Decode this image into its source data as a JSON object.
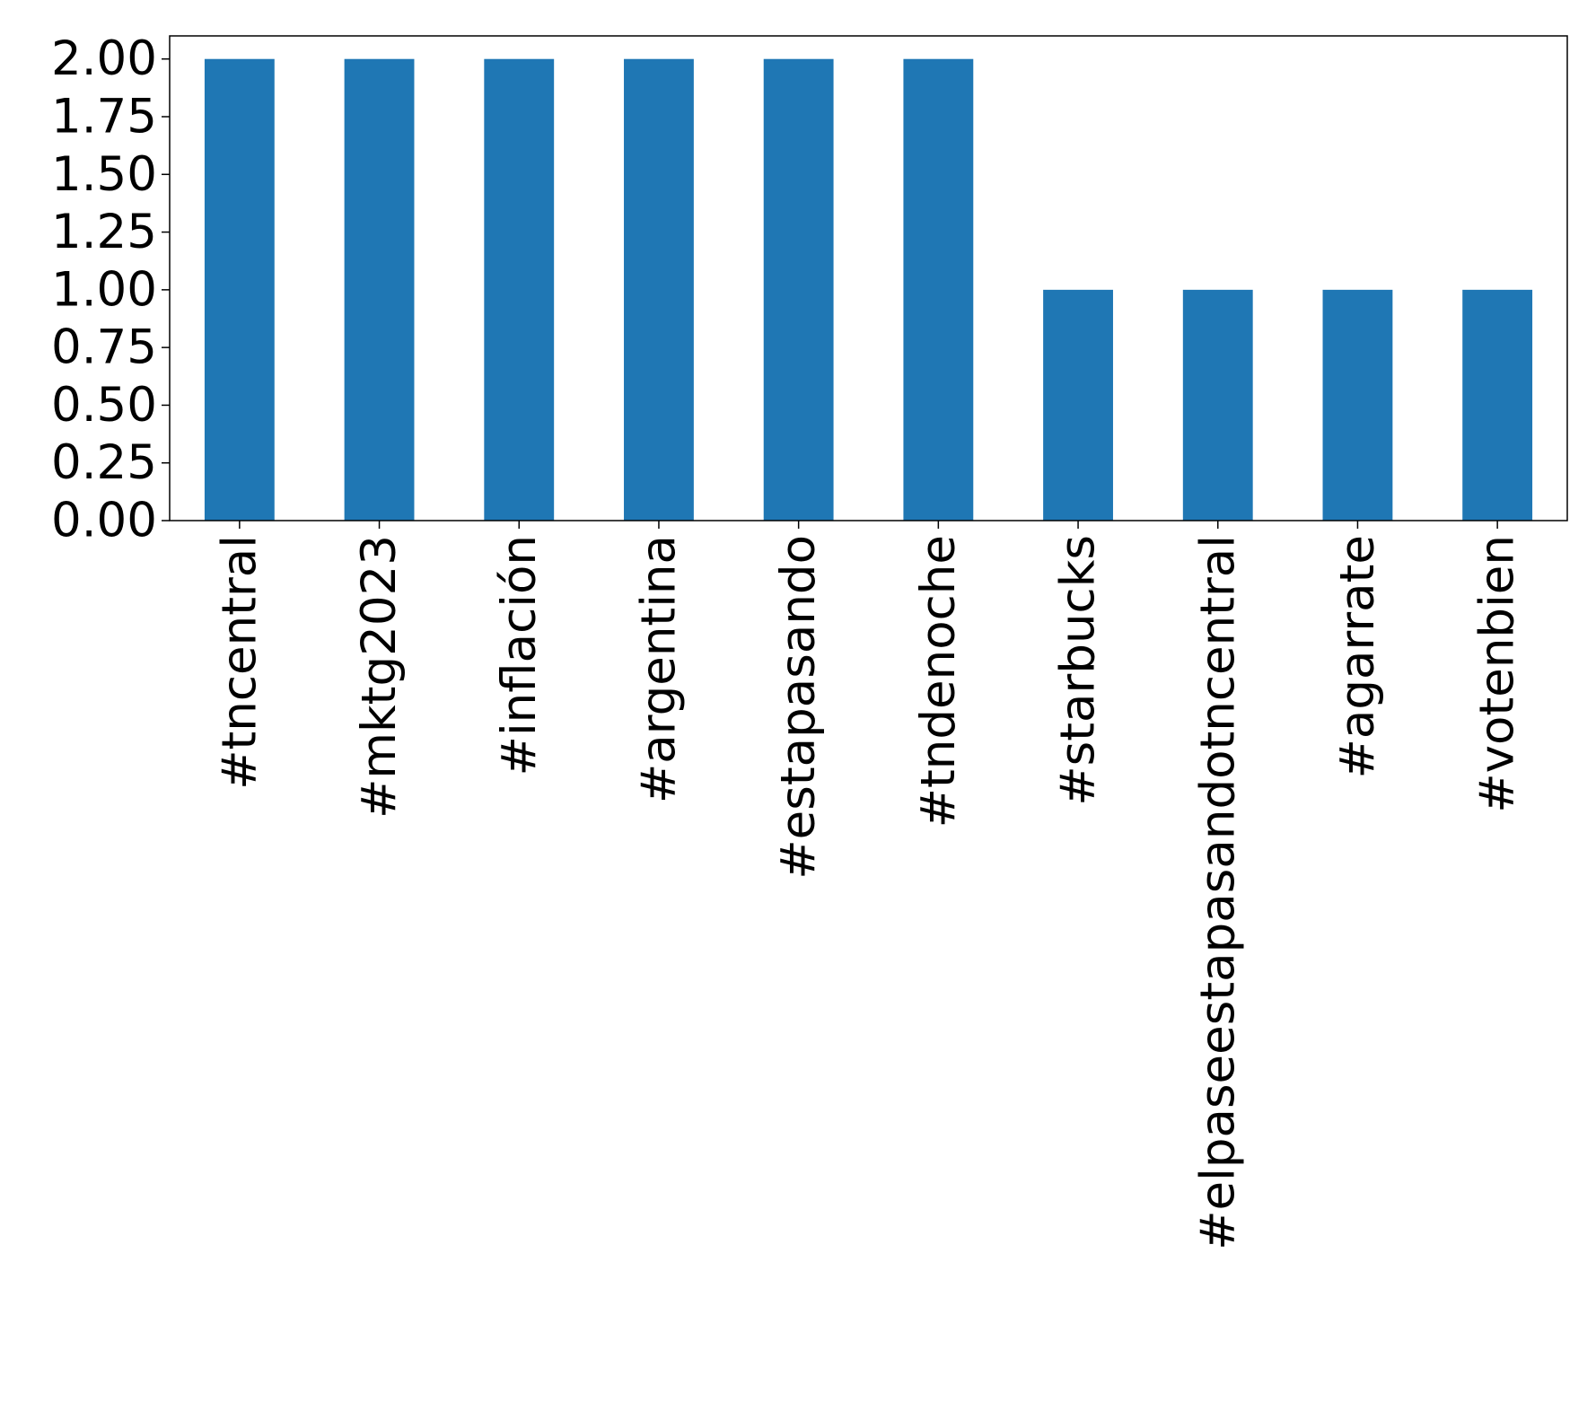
{
  "chart_data": {
    "type": "bar",
    "categories": [
      "#tncentral",
      "#mktg2023",
      "#inflación",
      "#argentina",
      "#estapasando",
      "#tndenoche",
      "#starbucks",
      "#elpaseestapasandotncentral",
      "#agarrate",
      "#votenbien"
    ],
    "values": [
      2,
      2,
      2,
      2,
      2,
      2,
      1,
      1,
      1,
      1
    ],
    "ylim": [
      0,
      2.1
    ],
    "yticks": [
      "0.00",
      "0.25",
      "0.50",
      "0.75",
      "1.00",
      "1.25",
      "1.50",
      "1.75",
      "2.00"
    ],
    "bar_color": "#1f77b4",
    "grid": false,
    "legend": "none"
  }
}
